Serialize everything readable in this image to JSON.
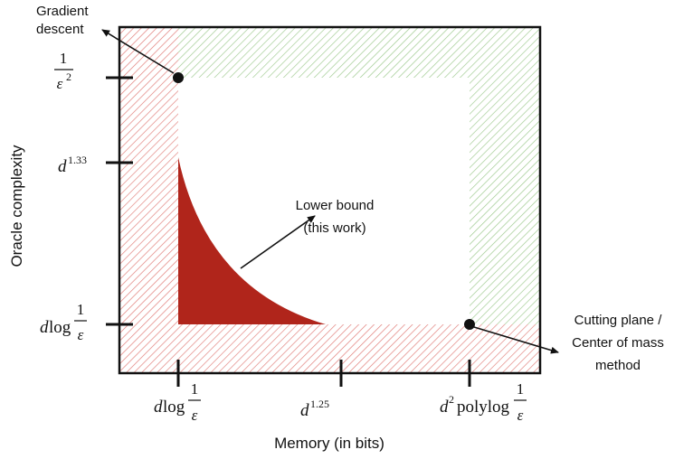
{
  "labels": {
    "gradient_descent_1": "Gradient",
    "gradient_descent_2": "descent",
    "lower_bound_1": "Lower bound",
    "lower_bound_2": "(this work)",
    "cutting_plane_1": "Cutting plane /",
    "cutting_plane_2": "Center of mass",
    "cutting_plane_3": "method"
  },
  "axes": {
    "x_label": "Memory (in bits)",
    "y_label": "Oracle complexity"
  },
  "y_ticks": {
    "one_over_eps_sq": {
      "num": "1",
      "den": "ε",
      "den_sup": "2"
    },
    "d_power": {
      "base": "d",
      "sup": "1.33"
    },
    "dlog": {
      "pre": "d",
      "log": "log",
      "num": "1",
      "den": "ε"
    }
  },
  "x_ticks": {
    "dlog": {
      "pre": "d",
      "log": "log",
      "num": "1",
      "den": "ε"
    },
    "d_power": {
      "base": "d",
      "sup": "1.25"
    },
    "d2polylog": {
      "pre": "d",
      "pre_sup": "2",
      "log": "polylog",
      "num": "1",
      "den": "ε"
    }
  },
  "colors": {
    "red_hatch": "#e07a75",
    "green_hatch": "#9cc98c",
    "lower_bound_fill": "#b0251b"
  }
}
